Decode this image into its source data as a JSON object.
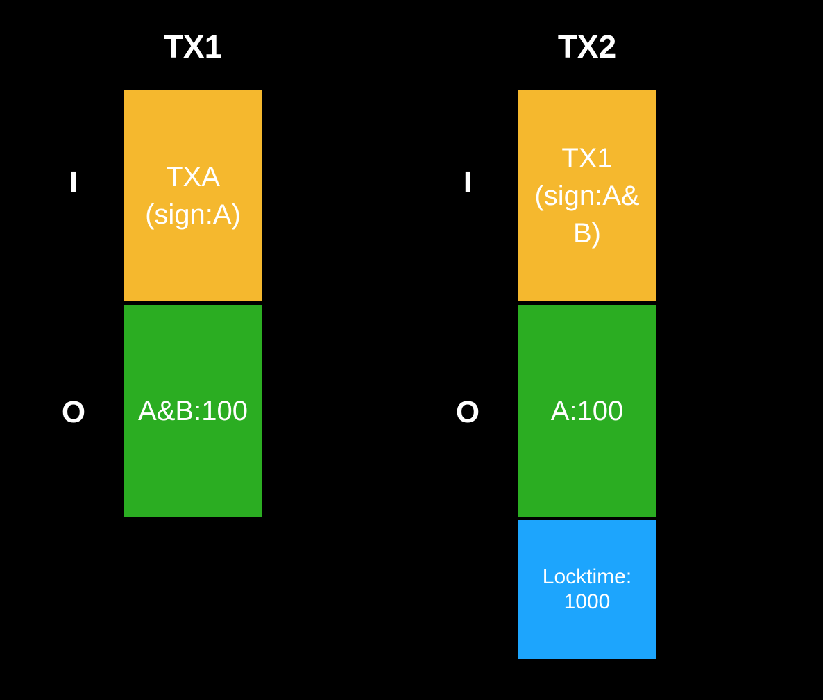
{
  "colors": {
    "background": "#000000",
    "input": "#F5B82E",
    "output": "#2BAD22",
    "locktime": "#1DA5FD",
    "text": "#FFFFFF"
  },
  "transactions": [
    {
      "title": "TX1",
      "input_label": "I",
      "output_label": "O",
      "input": "TXA\n(sign:A)",
      "output": "A&B:100"
    },
    {
      "title": "TX2",
      "input_label": "I",
      "output_label": "O",
      "input": "TX1\n(sign:A&\nB)",
      "output": "A:100",
      "locktime": "Locktime:\n1000"
    }
  ]
}
